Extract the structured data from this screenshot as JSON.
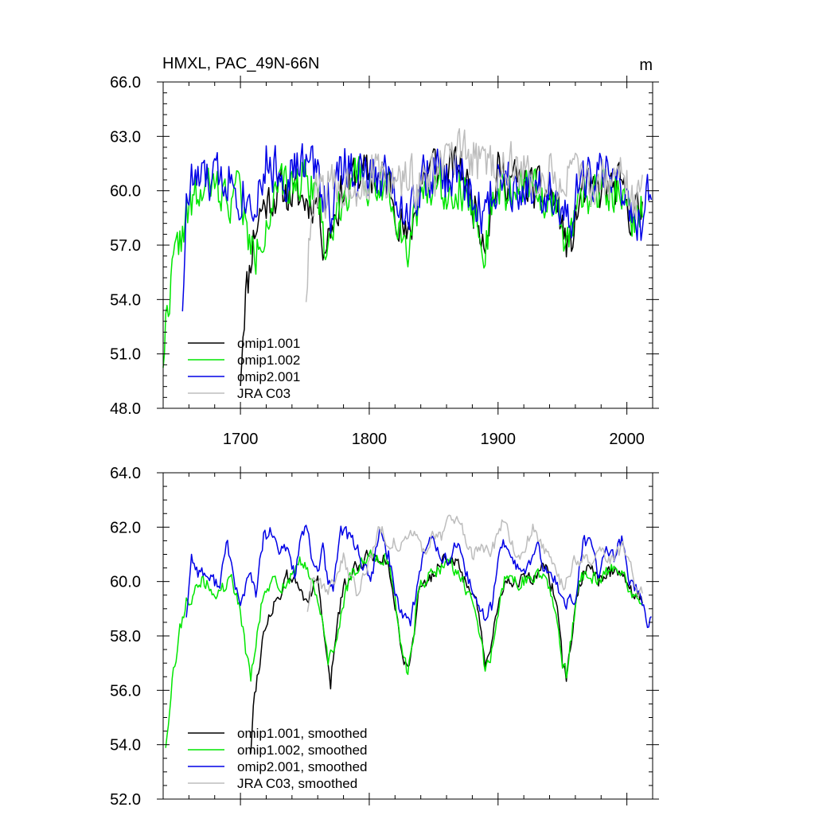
{
  "chart_data": [
    {
      "type": "line",
      "title": "HMXL, PAC_49N-66N",
      "units": "m",
      "xlabel": "",
      "ylabel": "",
      "xlim": [
        1640,
        2020
      ],
      "ylim": [
        48,
        66
      ],
      "yticks": [
        48,
        51,
        54,
        57,
        60,
        63,
        66
      ],
      "ytick_labels": [
        "48.0",
        "51.0",
        "54.0",
        "57.0",
        "60.0",
        "63.0",
        "66.0"
      ],
      "xticks": [
        1700,
        1800,
        1900,
        2000
      ],
      "xtick_labels": [
        "1700",
        "1800",
        "1900",
        "2000"
      ],
      "grid": false,
      "legend_position": "bottom-left",
      "series": [
        {
          "name": "omip1.001",
          "color": "#000000",
          "start": 1700,
          "end": 2012,
          "t0": 1700,
          "x": [
            1700,
            1702,
            1704,
            1706,
            1710,
            1716,
            1722,
            1730,
            1740,
            1750,
            1760,
            1765,
            1770,
            1780,
            1790,
            1800,
            1815,
            1830,
            1840,
            1850,
            1860,
            1870,
            1880,
            1890,
            1900,
            1915,
            1930,
            1945,
            1955,
            1965,
            1975,
            1985,
            1995,
            2005,
            2012
          ],
          "y": [
            49.8,
            52.5,
            54.5,
            55.0,
            57.5,
            59.0,
            59.5,
            60.0,
            59.8,
            59.5,
            59.5,
            57.0,
            58.0,
            60.2,
            61.0,
            60.8,
            60.5,
            57.0,
            60.5,
            61.5,
            61.0,
            61.5,
            59.5,
            57.5,
            61.0,
            60.5,
            60.0,
            59.5,
            56.5,
            60.0,
            59.8,
            60.0,
            60.2,
            58.5,
            59.0
          ],
          "noise": 1.1,
          "seed": 11
        },
        {
          "name": "omip1.002",
          "color": "#00e600",
          "start": 1640,
          "end": 2012,
          "t0": 1640,
          "x": [
            1640,
            1643,
            1647,
            1652,
            1658,
            1665,
            1672,
            1680,
            1690,
            1700,
            1706,
            1712,
            1720,
            1730,
            1740,
            1750,
            1760,
            1765,
            1770,
            1780,
            1790,
            1800,
            1815,
            1830,
            1840,
            1850,
            1860,
            1870,
            1880,
            1890,
            1900,
            1915,
            1930,
            1945,
            1955,
            1965,
            1975,
            1985,
            1995,
            2005,
            2012
          ],
          "y": [
            50.8,
            53.5,
            55.5,
            57.0,
            58.5,
            59.5,
            60.0,
            60.2,
            59.5,
            60.3,
            57.0,
            56.5,
            58.5,
            60.0,
            60.3,
            61.0,
            60.0,
            57.0,
            57.5,
            60.0,
            60.5,
            60.5,
            60.2,
            57.0,
            60.0,
            60.5,
            60.0,
            60.5,
            59.0,
            57.0,
            60.0,
            60.0,
            60.0,
            59.5,
            56.5,
            60.0,
            59.7,
            60.0,
            60.2,
            58.5,
            59.0
          ],
          "noise": 1.1,
          "seed": 22
        },
        {
          "name": "omip2.001",
          "color": "#0000e6",
          "start": 1655,
          "end": 2019,
          "t0": 1655,
          "x": [
            1655,
            1658,
            1662,
            1670,
            1680,
            1690,
            1700,
            1710,
            1720,
            1730,
            1740,
            1750,
            1760,
            1770,
            1780,
            1790,
            1800,
            1815,
            1830,
            1840,
            1850,
            1860,
            1870,
            1880,
            1890,
            1900,
            1915,
            1930,
            1945,
            1955,
            1965,
            1975,
            1985,
            1995,
            2005,
            2012,
            2019
          ],
          "y": [
            54.0,
            59.0,
            60.5,
            60.5,
            60.5,
            61.0,
            60.0,
            59.5,
            61.5,
            61.0,
            61.0,
            61.5,
            61.0,
            59.0,
            61.5,
            61.0,
            60.5,
            61.0,
            58.5,
            60.5,
            61.0,
            60.5,
            61.0,
            59.5,
            58.5,
            61.0,
            60.5,
            60.2,
            60.0,
            57.5,
            60.8,
            60.5,
            61.0,
            60.5,
            58.0,
            58.5,
            59.8
          ],
          "noise": 1.3,
          "seed": 33
        },
        {
          "name": "JRA C03",
          "color": "#bdbdbd",
          "start": 1751,
          "end": 2012,
          "t0": 1751,
          "x": [
            1751,
            1754,
            1758,
            1765,
            1775,
            1790,
            1800,
            1815,
            1830,
            1845,
            1860,
            1875,
            1890,
            1905,
            1920,
            1935,
            1950,
            1965,
            1980,
            1995,
            2005,
            2012
          ],
          "y": [
            54.5,
            57.5,
            59.5,
            60.0,
            60.2,
            60.5,
            60.8,
            60.5,
            60.5,
            60.5,
            61.5,
            61.8,
            61.5,
            61.5,
            60.8,
            60.8,
            60.5,
            60.5,
            60.5,
            60.8,
            59.5,
            59.5
          ],
          "noise": 1.3,
          "seed": 44
        }
      ]
    },
    {
      "type": "line",
      "title": "",
      "xlabel": "",
      "ylabel": "",
      "xlim": [
        1640,
        2020
      ],
      "ylim": [
        52,
        64
      ],
      "yticks": [
        52,
        54,
        56,
        58,
        60,
        62,
        64
      ],
      "ytick_labels": [
        "52.0",
        "54.0",
        "56.0",
        "58.0",
        "60.0",
        "62.0",
        "64.0"
      ],
      "xticks": [
        1700,
        1800,
        1900,
        2000
      ],
      "grid": false,
      "legend_position": "bottom-left",
      "series": [
        {
          "name": "omip1.001, smoothed",
          "color": "#000000",
          "start": 1708,
          "end": 2012,
          "t0": 1708,
          "x": [
            1708,
            1710,
            1713,
            1717,
            1722,
            1727,
            1732,
            1736,
            1742,
            1748,
            1752,
            1756,
            1760,
            1764,
            1767,
            1770,
            1775,
            1780,
            1790,
            1800,
            1808,
            1815,
            1820,
            1827,
            1830,
            1833,
            1838,
            1845,
            1850,
            1856,
            1862,
            1868,
            1875,
            1882,
            1887,
            1890,
            1893,
            1898,
            1905,
            1912,
            1918,
            1924,
            1930,
            1936,
            1942,
            1947,
            1950,
            1953,
            1957,
            1963,
            1970,
            1978,
            1985,
            1992,
            1998,
            2004,
            2008,
            2012
          ],
          "y": [
            53.8,
            55.5,
            56.5,
            57.8,
            58.8,
            59.3,
            59.6,
            60.1,
            60.0,
            59.6,
            59.4,
            59.6,
            60.1,
            58.5,
            57.0,
            56.2,
            58.5,
            59.8,
            60.6,
            61.0,
            61.0,
            60.6,
            59.0,
            57.2,
            56.7,
            57.5,
            59.5,
            60.0,
            60.3,
            60.8,
            60.9,
            60.6,
            60.0,
            59.5,
            58.0,
            57.0,
            57.0,
            58.5,
            60.0,
            60.1,
            60.0,
            60.0,
            60.3,
            60.5,
            59.8,
            58.5,
            57.0,
            56.5,
            57.8,
            60.0,
            60.5,
            60.0,
            60.3,
            60.5,
            60.3,
            59.6,
            59.5,
            59.2
          ],
          "noise": 0.25,
          "seed": 55
        },
        {
          "name": "omip1.002, smoothed",
          "color": "#00e600",
          "start": 1642,
          "end": 2012,
          "t0": 1642,
          "x": [
            1642,
            1645,
            1649,
            1653,
            1658,
            1664,
            1670,
            1676,
            1682,
            1688,
            1694,
            1700,
            1704,
            1708,
            1713,
            1717,
            1722,
            1727,
            1732,
            1737,
            1742,
            1748,
            1752,
            1757,
            1762,
            1765,
            1768,
            1773,
            1778,
            1785,
            1792,
            1800,
            1808,
            1815,
            1820,
            1825,
            1830,
            1833,
            1838,
            1845,
            1850,
            1856,
            1862,
            1868,
            1875,
            1882,
            1887,
            1890,
            1893,
            1898,
            1905,
            1912,
            1918,
            1924,
            1930,
            1936,
            1942,
            1947,
            1950,
            1953,
            1957,
            1963,
            1970,
            1978,
            1985,
            1992,
            1998,
            2004,
            2008,
            2012
          ],
          "y": [
            54.0,
            55.5,
            57.0,
            58.2,
            59.3,
            59.5,
            60.0,
            59.8,
            59.5,
            59.8,
            60.0,
            59.0,
            57.5,
            56.4,
            58.0,
            59.3,
            59.8,
            60.0,
            59.8,
            60.1,
            60.3,
            60.8,
            60.5,
            59.7,
            59.0,
            58.0,
            57.0,
            57.5,
            58.8,
            60.2,
            60.6,
            60.9,
            61.0,
            60.8,
            59.3,
            57.5,
            56.6,
            57.5,
            59.8,
            60.2,
            60.3,
            60.5,
            60.8,
            60.4,
            59.7,
            59.2,
            57.8,
            56.8,
            56.9,
            58.5,
            60.0,
            60.0,
            60.0,
            60.0,
            60.3,
            60.4,
            59.6,
            58.3,
            56.9,
            56.6,
            57.9,
            60.0,
            60.4,
            59.9,
            60.3,
            60.5,
            60.3,
            59.5,
            59.6,
            59.2
          ],
          "noise": 0.25,
          "seed": 66
        },
        {
          "name": "omip2.001, smoothed",
          "color": "#0000e6",
          "start": 1658,
          "end": 2019,
          "t0": 1658,
          "x": [
            1658,
            1662,
            1667,
            1672,
            1678,
            1684,
            1690,
            1695,
            1700,
            1706,
            1712,
            1718,
            1724,
            1730,
            1736,
            1742,
            1748,
            1752,
            1756,
            1760,
            1764,
            1768,
            1772,
            1778,
            1784,
            1790,
            1796,
            1802,
            1808,
            1815,
            1820,
            1826,
            1832,
            1838,
            1844,
            1850,
            1856,
            1862,
            1868,
            1874,
            1880,
            1885,
            1890,
            1896,
            1902,
            1908,
            1914,
            1920,
            1926,
            1932,
            1938,
            1944,
            1950,
            1955,
            1960,
            1966,
            1972,
            1978,
            1984,
            1990,
            1996,
            2002,
            2007,
            2012,
            2016,
            2019
          ],
          "y": [
            58.8,
            60.9,
            60.4,
            60.3,
            60.0,
            60.0,
            61.4,
            60.1,
            59.0,
            60.3,
            59.6,
            61.6,
            61.8,
            61.0,
            61.3,
            60.3,
            61.8,
            61.8,
            60.6,
            60.5,
            61.2,
            59.8,
            59.8,
            62.0,
            61.6,
            61.4,
            60.4,
            60.2,
            61.8,
            61.0,
            59.6,
            58.8,
            58.6,
            60.0,
            61.3,
            61.6,
            61.0,
            60.7,
            61.4,
            60.3,
            59.8,
            58.9,
            58.7,
            59.2,
            61.4,
            61.3,
            60.6,
            60.3,
            60.8,
            61.2,
            60.2,
            60.1,
            59.3,
            59.3,
            59.3,
            61.5,
            61.3,
            60.3,
            61.2,
            60.8,
            61.6,
            60.0,
            59.8,
            59.2,
            58.6,
            58.5
          ],
          "noise": 0.25,
          "seed": 77
        },
        {
          "name": "JRA C03, smoothed",
          "color": "#bdbdbd",
          "start": 1752,
          "end": 2012,
          "t0": 1752,
          "x": [
            1752,
            1756,
            1762,
            1768,
            1775,
            1780,
            1786,
            1792,
            1797,
            1802,
            1808,
            1814,
            1820,
            1826,
            1832,
            1838,
            1844,
            1850,
            1856,
            1862,
            1868,
            1874,
            1880,
            1886,
            1892,
            1898,
            1904,
            1910,
            1916,
            1922,
            1928,
            1934,
            1940,
            1946,
            1950,
            1956,
            1962,
            1968,
            1974,
            1980,
            1986,
            1992,
            1998,
            2004,
            2008,
            2012
          ],
          "y": [
            59.0,
            60.3,
            60.0,
            59.7,
            60.3,
            61.0,
            60.0,
            59.5,
            60.5,
            61.0,
            62.0,
            61.6,
            61.4,
            61.3,
            61.6,
            61.8,
            60.8,
            61.8,
            61.7,
            62.4,
            62.1,
            61.7,
            61.0,
            61.4,
            61.0,
            61.4,
            62.2,
            61.4,
            61.0,
            61.4,
            62.0,
            61.2,
            60.8,
            60.3,
            59.8,
            60.4,
            60.9,
            60.7,
            60.6,
            61.0,
            60.7,
            61.0,
            61.2,
            60.3,
            59.7,
            59.8
          ],
          "noise": 0.25,
          "seed": 88
        }
      ]
    }
  ]
}
